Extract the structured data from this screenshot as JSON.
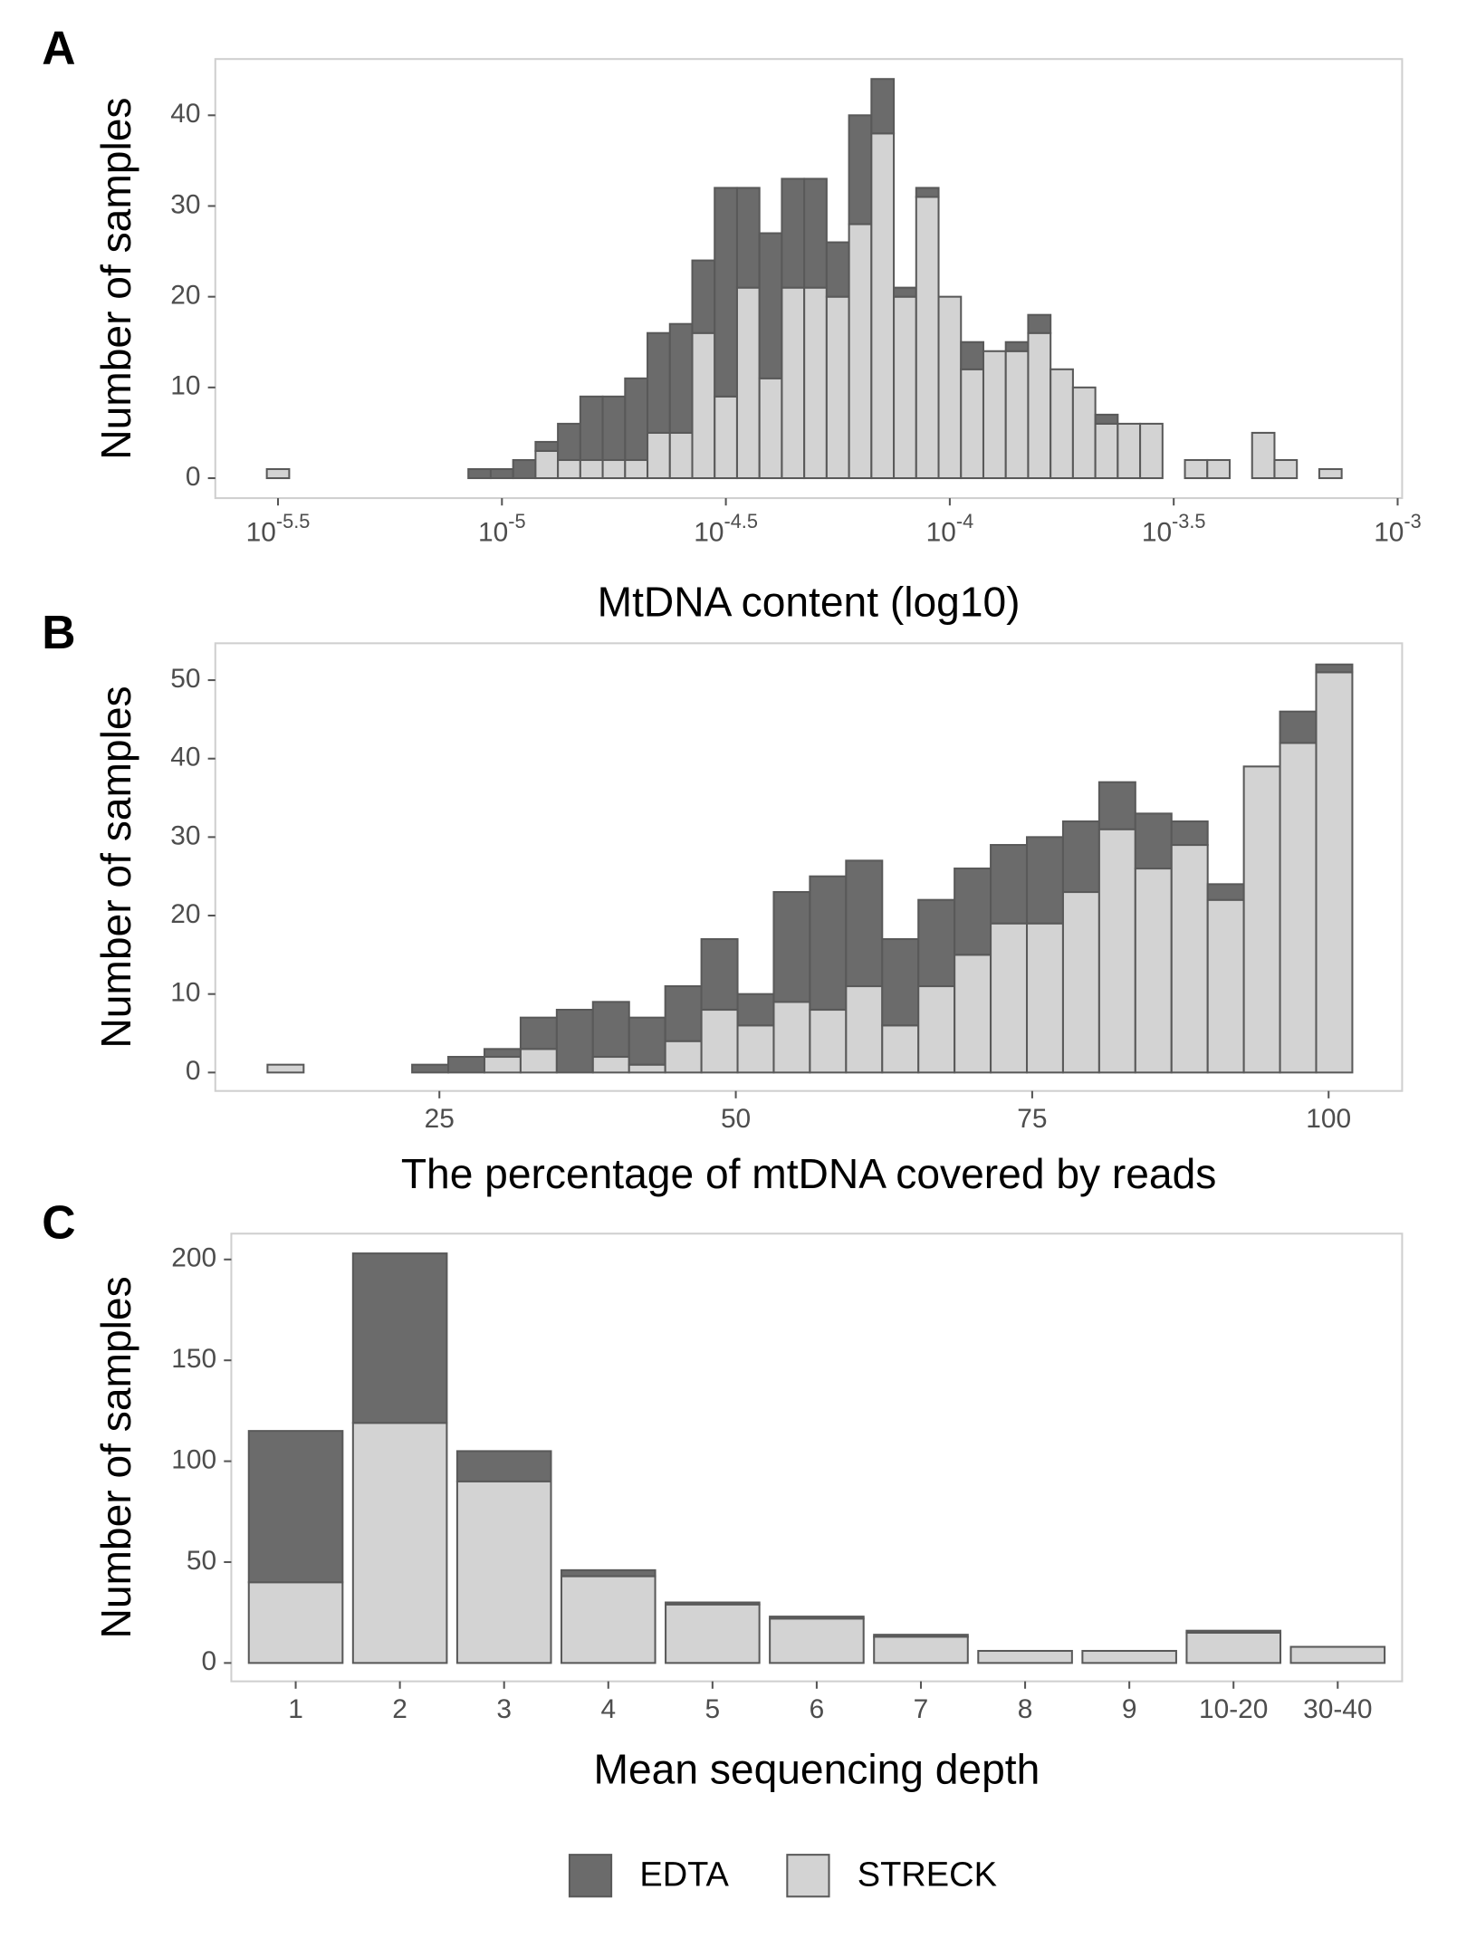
{
  "charts": [
    {
      "type": "histogram",
      "label": "A",
      "ylabel": "Number of samples",
      "xlabel": "MtDNA content (log10)",
      "bins": [
        -5.525,
        -5.475,
        -5.425,
        -5.375,
        -5.325,
        -5.275,
        -5.225,
        -5.175,
        -5.125,
        -5.075,
        -5.025,
        -4.975,
        -4.925,
        -4.875,
        -4.825,
        -4.775,
        -4.725,
        -4.675,
        -4.625,
        -4.575,
        -4.525,
        -4.475,
        -4.425,
        -4.375,
        -4.325,
        -4.275,
        -4.225,
        -4.175,
        -4.125,
        -4.075,
        -4.025,
        -3.975,
        -3.925,
        -3.875,
        -3.825,
        -3.775,
        -3.725,
        -3.675,
        -3.625,
        -3.575,
        -3.525,
        -3.475,
        -3.425,
        -3.375,
        -3.325,
        -3.275,
        -3.225,
        -3.175,
        -3.125
      ],
      "series": [
        {
          "values": [
            0,
            0,
            0,
            0,
            0,
            0,
            0,
            0,
            0,
            1,
            1,
            2,
            1,
            4,
            7,
            7,
            9,
            11,
            12,
            8,
            23,
            11,
            16,
            12,
            12,
            6,
            12,
            6,
            1,
            1,
            0,
            3,
            0,
            1,
            2,
            0,
            0,
            1,
            0,
            0,
            0,
            0,
            0,
            0,
            0,
            0,
            0,
            0
          ]
        },
        {
          "values": [
            1,
            0,
            0,
            0,
            0,
            0,
            0,
            0,
            0,
            0,
            0,
            0,
            3,
            2,
            2,
            2,
            2,
            5,
            5,
            16,
            9,
            21,
            11,
            21,
            21,
            20,
            28,
            38,
            20,
            31,
            20,
            12,
            14,
            14,
            16,
            12,
            10,
            6,
            6,
            6,
            0,
            2,
            2,
            0,
            5,
            2,
            0,
            1
          ]
        }
      ],
      "xlim": [
        -5.64,
        -2.99
      ],
      "xticks": [
        {
          "value": -5.5,
          "label": "10",
          "superscript": "-5.5"
        },
        {
          "value": -5,
          "label": "10",
          "superscript": "-5"
        },
        {
          "value": -4.5,
          "label": "10",
          "superscript": "-4.5"
        },
        {
          "value": -4,
          "label": "10",
          "superscript": "-4"
        },
        {
          "value": -3.5,
          "label": "10",
          "superscript": "-3.5"
        },
        {
          "value": -3,
          "label": "10",
          "superscript": "-3"
        }
      ],
      "ylim": [
        -2.2,
        46.2
      ],
      "yticks": [
        0,
        10,
        20,
        30,
        40
      ],
      "grid": false
    },
    {
      "type": "histogram",
      "label": "B",
      "ylabel": "Number of samples",
      "xlabel": "The percentage of mtDNA covered by reads",
      "bins": [
        10.5,
        13.55,
        16.6,
        19.65,
        22.7,
        25.75,
        28.8,
        31.85,
        34.9,
        37.95,
        41,
        44.05,
        47.1,
        50.15,
        53.2,
        56.25,
        59.3,
        62.35,
        65.4,
        68.45,
        71.5,
        74.55,
        77.6,
        80.65,
        83.7,
        86.75,
        89.8,
        92.85,
        95.9,
        98.95,
        102
      ],
      "series": [
        {
          "values": [
            0,
            0,
            0,
            0,
            1,
            2,
            1,
            4,
            8,
            7,
            6,
            7,
            9,
            4,
            14,
            17,
            16,
            11,
            11,
            11,
            10,
            11,
            9,
            6,
            7,
            3,
            2,
            0,
            4,
            1
          ]
        },
        {
          "values": [
            1,
            0,
            0,
            0,
            0,
            0,
            2,
            3,
            0,
            2,
            1,
            4,
            8,
            6,
            9,
            8,
            11,
            6,
            11,
            15,
            19,
            19,
            23,
            31,
            26,
            29,
            22,
            39,
            42,
            51
          ]
        }
      ],
      "xlim": [
        6.1,
        106.2
      ],
      "xticks": [
        25,
        50,
        75,
        100
      ],
      "ylim": [
        -2.35,
        54.7
      ],
      "yticks": [
        0,
        10,
        20,
        30,
        40,
        50
      ],
      "grid": false
    },
    {
      "type": "bar",
      "label": "C",
      "ylabel": "Number of samples",
      "xlabel": "Mean sequencing depth",
      "categories": [
        "1",
        "2",
        "3",
        "4",
        "5",
        "6",
        "7",
        "8",
        "9",
        "10-20",
        "30-40"
      ],
      "series": [
        {
          "values": [
            75,
            84,
            15,
            3,
            1,
            1,
            1,
            0,
            0,
            1,
            0
          ]
        },
        {
          "values": [
            40,
            119,
            90,
            43,
            29,
            22,
            13,
            6,
            6,
            15,
            8
          ]
        }
      ],
      "ylim": [
        -9.1,
        212.8
      ],
      "yticks": [
        0,
        50,
        100,
        150,
        200
      ],
      "grid": false
    }
  ],
  "legend": [
    {
      "name": "EDTA",
      "color": "#6b6b6b"
    },
    {
      "name": "STRECK",
      "color": "#d3d3d3"
    }
  ]
}
